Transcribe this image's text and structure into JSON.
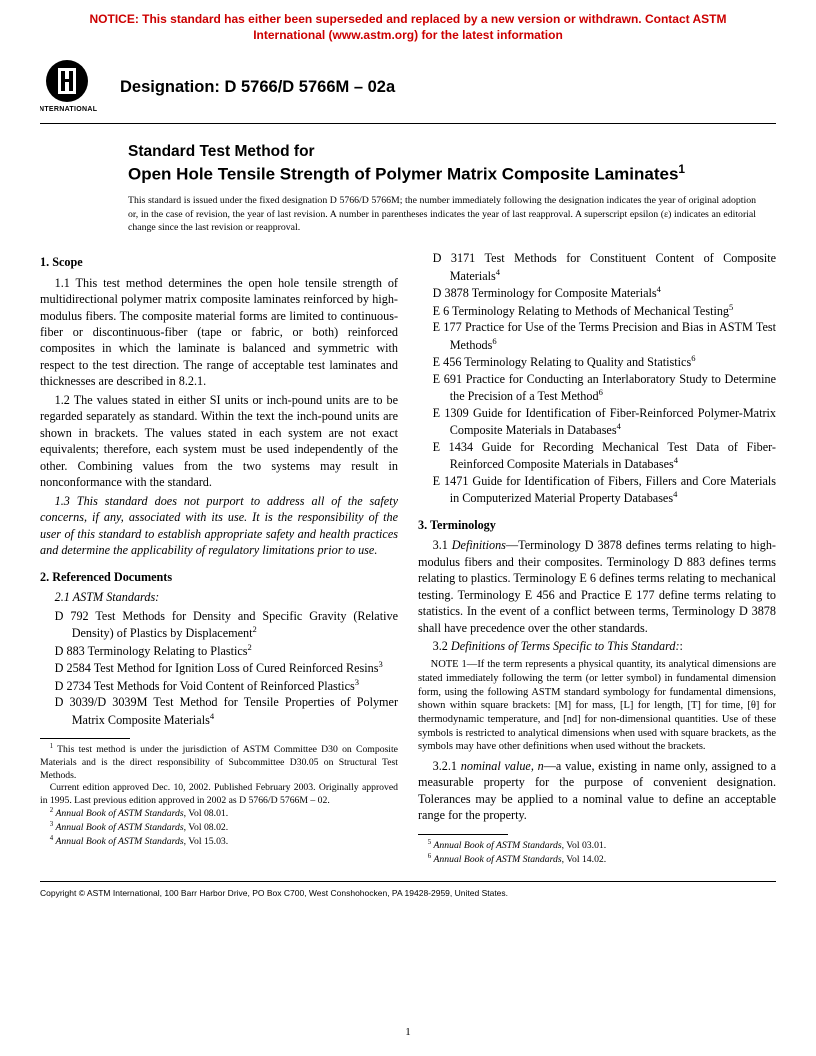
{
  "notice": "NOTICE: This standard has either been superseded and replaced by a new version or withdrawn. Contact ASTM International (www.astm.org) for the latest information",
  "logo_text_top": "ASTM",
  "logo_text_bottom": "INTERNATIONAL",
  "designation": "Designation: D 5766/D 5766M – 02a",
  "title_prefix": "Standard Test Method for",
  "title_main": "Open Hole Tensile Strength of Polymer Matrix Composite Laminates",
  "title_sup": "1",
  "issuance": "This standard is issued under the fixed designation D 5766/D 5766M; the number immediately following the designation indicates the year of original adoption or, in the case of revision, the year of last revision. A number in parentheses indicates the year of last reapproval. A superscript epsilon (ε) indicates an editorial change since the last revision or reapproval.",
  "sections": {
    "scope": {
      "head": "1. Scope",
      "p1": "1.1 This test method determines the open hole tensile strength of multidirectional polymer matrix composite laminates reinforced by high-modulus fibers. The composite material forms are limited to continuous-fiber or discontinuous-fiber (tape or fabric, or both) reinforced composites in which the laminate is balanced and symmetric with respect to the test direction. The range of acceptable test laminates and thicknesses are described in 8.2.1.",
      "p2": "1.2 The values stated in either SI units or inch-pound units are to be regarded separately as standard. Within the text the inch-pound units are shown in brackets. The values stated in each system are not exact equivalents; therefore, each system must be used independently of the other. Combining values from the two systems may result in nonconformance with the standard.",
      "p3": "1.3 This standard does not purport to address all of the safety concerns, if any, associated with its use. It is the responsibility of the user of this standard to establish appropriate safety and health practices and determine the applicability of regulatory limitations prior to use."
    },
    "refdocs": {
      "head": "2. Referenced Documents",
      "sub": "2.1 ASTM Standards:",
      "items_left": [
        {
          "t": "D 792  Test Methods for Density and Specific Gravity (Relative Density) of Plastics by Displacement",
          "s": "2"
        },
        {
          "t": "D 883  Terminology Relating to Plastics",
          "s": "2"
        },
        {
          "t": "D 2584  Test Method for Ignition Loss of Cured Reinforced Resins",
          "s": "3"
        },
        {
          "t": "D 2734  Test Methods for Void Content of Reinforced Plastics",
          "s": "3"
        },
        {
          "t": "D 3039/D 3039M Test Method for Tensile Properties of Polymer Matrix Composite Materials",
          "s": "4"
        }
      ],
      "items_right": [
        {
          "t": "D 3171  Test Methods for Constituent Content of Composite Materials",
          "s": "4"
        },
        {
          "t": "D 3878  Terminology for Composite Materials",
          "s": "4"
        },
        {
          "t": "E 6  Terminology Relating to Methods of Mechanical Testing",
          "s": "5"
        },
        {
          "t": "E 177  Practice for Use of the Terms Precision and Bias in ASTM Test Methods",
          "s": "6"
        },
        {
          "t": "E 456  Terminology Relating to Quality and Statistics",
          "s": "6"
        },
        {
          "t": "E 691  Practice for Conducting an Interlaboratory Study to Determine the Precision of a Test Method",
          "s": "6"
        },
        {
          "t": "E 1309  Guide for Identification of Fiber-Reinforced Polymer-Matrix Composite Materials in Databases",
          "s": "4"
        },
        {
          "t": "E 1434  Guide for Recording Mechanical Test Data of Fiber-Reinforced Composite Materials in Databases",
          "s": "4"
        },
        {
          "t": "E 1471  Guide for Identification of Fibers, Fillers and Core Materials in Computerized Material Property Databases",
          "s": "4"
        }
      ]
    },
    "terminology": {
      "head": "3. Terminology",
      "p1_lead": "3.1 ",
      "p1_italic": "Definitions",
      "p1_rest": "—Terminology D 3878 defines terms relating to high-modulus fibers and their composites. Terminology D 883 defines terms relating to plastics. Terminology E 6 defines terms relating to mechanical testing. Terminology E 456 and Practice E 177 define terms relating to statistics. In the event of a conflict between terms, Terminology D 3878 shall have precedence over the other standards.",
      "p2_lead": "3.2 ",
      "p2_italic": "Definitions of Terms Specific to This Standard:",
      "p2_rest": ":",
      "note_label": "Note 1—",
      "note_body": "If the term represents a physical quantity, its analytical dimensions are stated immediately following the term (or letter symbol) in fundamental dimension form, using the following ASTM standard symbology for fundamental dimensions, shown within square brackets: [M] for mass, [L] for length, [T] for time, [θ] for thermodynamic temperature, and [nd] for non-dimensional quantities. Use of these symbols is restricted to analytical dimensions when used with square brackets, as the symbols may have other definitions when used without the brackets.",
      "p3_lead": "3.2.1 ",
      "p3_italic": "nominal value, n",
      "p3_rest": "—a value, existing in name only, assigned to a measurable property for the purpose of convenient designation. Tolerances may be applied to a nominal value to define an acceptable range for the property."
    }
  },
  "footnotes_left": [
    {
      "s": "1",
      "t": " This test method is under the jurisdiction of ASTM Committee D30 on Composite Materials and is the direct responsibility of Subcommittee D30.05 on Structural Test Methods."
    },
    {
      "s": "",
      "t": "Current edition approved Dec. 10, 2002. Published February 2003. Originally approved in 1995. Last previous edition approved in 2002 as D 5766/D 5766M – 02."
    },
    {
      "s": "2",
      "t": " Annual Book of ASTM Standards, Vol 08.01."
    },
    {
      "s": "3",
      "t": " Annual Book of ASTM Standards, Vol 08.02."
    },
    {
      "s": "4",
      "t": " Annual Book of ASTM Standards, Vol 15.03."
    }
  ],
  "footnotes_right": [
    {
      "s": "5",
      "t": " Annual Book of ASTM Standards, Vol 03.01."
    },
    {
      "s": "6",
      "t": " Annual Book of ASTM Standards, Vol 14.02."
    }
  ],
  "copyright": "Copyright © ASTM International, 100 Barr Harbor Drive, PO Box C700, West Conshohocken, PA 19428-2959, United States.",
  "pagenum": "1"
}
